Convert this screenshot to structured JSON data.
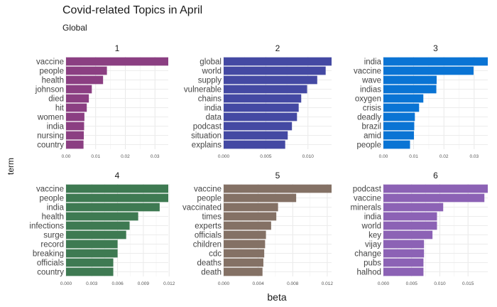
{
  "chart_data": {
    "type": "bar",
    "title": "Covid-related Topics in April",
    "subtitle": "Global",
    "xlabel": "beta",
    "ylabel": "term",
    "grid": true,
    "orientation": "horizontal",
    "facets": [
      {
        "name": "1",
        "color": "#8b3f82",
        "terms": [
          "vaccine",
          "people",
          "health",
          "johnson",
          "died",
          "hit",
          "women",
          "india",
          "nursing",
          "country"
        ],
        "values": [
          0.0345,
          0.0138,
          0.0125,
          0.0087,
          0.0077,
          0.007,
          0.0062,
          0.0061,
          0.006,
          0.0059
        ],
        "xlim": [
          0,
          0.0345
        ],
        "ticks": [
          0,
          0.01,
          0.02,
          0.03
        ],
        "tick_labels": [
          "0.00",
          "0.01",
          "0.02",
          "0.03"
        ]
      },
      {
        "name": "2",
        "color": "#4449a3",
        "terms": [
          "global",
          "world",
          "supply",
          "vulnerable",
          "chains",
          "india",
          "data",
          "podcast",
          "situation",
          "explains"
        ],
        "values": [
          0.0128,
          0.0121,
          0.0111,
          0.0099,
          0.0092,
          0.0089,
          0.0087,
          0.0081,
          0.0076,
          0.0073
        ],
        "xlim": [
          0,
          0.0128
        ],
        "ticks": [
          0,
          0.005,
          0.01
        ],
        "tick_labels": [
          "0.000",
          "0.005",
          "0.010"
        ]
      },
      {
        "name": "3",
        "color": "#0a74d4",
        "terms": [
          "india",
          "vaccine",
          "wave",
          "indias",
          "oxygen",
          "crisis",
          "deadly",
          "brazil",
          "amid",
          "people"
        ],
        "values": [
          0.0345,
          0.0298,
          0.0176,
          0.0175,
          0.0132,
          0.0118,
          0.0104,
          0.0102,
          0.0101,
          0.0088
        ],
        "xlim": [
          0,
          0.0345
        ],
        "ticks": [
          0,
          0.01,
          0.02,
          0.03
        ],
        "tick_labels": [
          "0.00",
          "0.01",
          "0.02",
          "0.03"
        ]
      },
      {
        "name": "4",
        "color": "#3e7a52",
        "terms": [
          "vaccine",
          "people",
          "india",
          "health",
          "infections",
          "surge",
          "record",
          "breaking",
          "officials",
          "country"
        ],
        "values": [
          0.0119,
          0.0119,
          0.0109,
          0.0084,
          0.0074,
          0.007,
          0.006,
          0.006,
          0.0055,
          0.0055
        ],
        "xlim": [
          0,
          0.0119
        ],
        "ticks": [
          0,
          0.003,
          0.006,
          0.009,
          0.012
        ],
        "tick_labels": [
          "0.000",
          "0.003",
          "0.006",
          "0.009",
          "0.012"
        ]
      },
      {
        "name": "5",
        "color": "#847165",
        "terms": [
          "vaccine",
          "people",
          "vaccinated",
          "times",
          "experts",
          "officials",
          "children",
          "cdc",
          "deaths",
          "death"
        ],
        "values": [
          0.0125,
          0.0084,
          0.0063,
          0.0061,
          0.0055,
          0.0049,
          0.0048,
          0.0047,
          0.0046,
          0.0045
        ],
        "xlim": [
          0,
          0.0125
        ],
        "ticks": [
          0,
          0.004,
          0.008,
          0.012
        ],
        "tick_labels": [
          "0.000",
          "0.004",
          "0.008",
          "0.012"
        ]
      },
      {
        "name": "6",
        "color": "#8c62b5",
        "terms": [
          "podcast",
          "vaccine",
          "minerals",
          "india",
          "world",
          "key",
          "vijay",
          "change",
          "pubs",
          "halhod"
        ],
        "values": [
          0.0185,
          0.0179,
          0.0106,
          0.0095,
          0.0095,
          0.0087,
          0.0072,
          0.0072,
          0.0071,
          0.0071
        ],
        "xlim": [
          0,
          0.0185
        ],
        "ticks": [
          0,
          0.005,
          0.01,
          0.015
        ],
        "tick_labels": [
          "0.000",
          "0.005",
          "0.010",
          "0.015"
        ]
      }
    ]
  }
}
